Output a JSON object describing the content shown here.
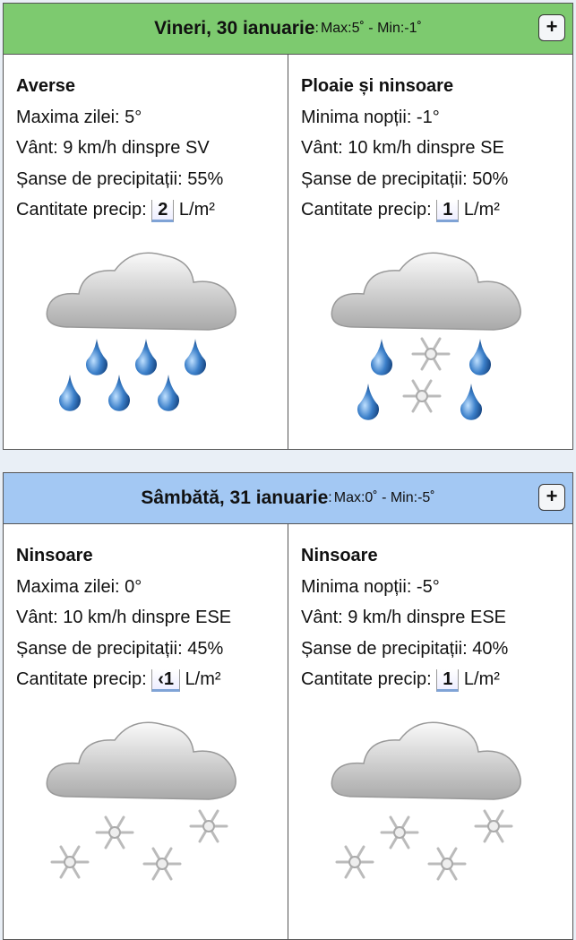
{
  "days": [
    {
      "date": "Vineri, 30 ianuarie",
      "sep": ":",
      "minmax": "Max:5˚ - Min:-1˚",
      "expand": "+",
      "header_color": "#7dca6f",
      "parts": [
        {
          "title": "Averse",
          "temp": "Maxima zilei: 5°",
          "wind": "Vânt: 9 km/h dinspre SV",
          "chance": "Șanse de precipitații: 55%",
          "qty_label": "Cantitate precip:",
          "qty": "2",
          "unit": "L/m²",
          "icon": "cloud-rain-icon"
        },
        {
          "title": "Ploaie și ninsoare",
          "temp": "Minima nopții: -1°",
          "wind": "Vânt: 10 km/h dinspre SE",
          "chance": "Șanse de precipitații: 50%",
          "qty_label": "Cantitate precip:",
          "qty": "1",
          "unit": "L/m²",
          "icon": "cloud-rain-snow-icon"
        }
      ]
    },
    {
      "date": "Sâmbătă, 31 ianuarie",
      "sep": ":",
      "minmax": "Max:0˚ - Min:-5˚",
      "expand": "+",
      "header_color": "#a3c8f3",
      "parts": [
        {
          "title": "Ninsoare",
          "temp": "Maxima zilei: 0°",
          "wind": "Vânt: 10 km/h dinspre ESE",
          "chance": "Șanse de precipitații: 45%",
          "qty_label": "Cantitate precip:",
          "qty": "‹1",
          "unit": "L/m²",
          "icon": "cloud-snow-icon"
        },
        {
          "title": "Ninsoare",
          "temp": "Minima nopții: -5°",
          "wind": "Vânt: 9 km/h dinspre ESE",
          "chance": "Șanse de precipitații: 40%",
          "qty_label": "Cantitate precip:",
          "qty": "1",
          "unit": "L/m²",
          "icon": "cloud-snow-icon"
        }
      ]
    }
  ]
}
